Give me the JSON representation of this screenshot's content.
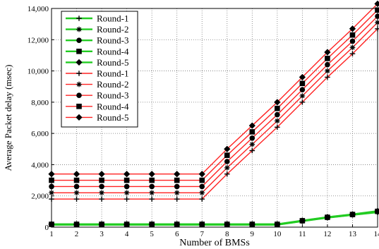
{
  "chart_data": {
    "type": "line",
    "xlabel": "Number of BMSs",
    "ylabel": "Average Packet delay (msec)",
    "x": [
      1,
      2,
      3,
      4,
      5,
      6,
      7,
      8,
      9,
      10,
      11,
      12,
      13,
      14
    ],
    "xlim": [
      1,
      14
    ],
    "ylim": [
      0,
      14000
    ],
    "yticks": [
      "0",
      "2,000",
      "4,000",
      "6,000",
      "8,000",
      "10,000",
      "12,000",
      "14,000"
    ],
    "xticks": [
      "1",
      "2",
      "3",
      "4",
      "5",
      "6",
      "7",
      "8",
      "9",
      "10",
      "11",
      "12",
      "13",
      "14"
    ],
    "grid": "dotted",
    "legend_position": "top-left",
    "series": [
      {
        "name": "Round-1",
        "color": "#22cc22",
        "marker": "plus",
        "values": [
          150,
          150,
          150,
          150,
          150,
          150,
          150,
          150,
          150,
          150,
          380,
          600,
          780,
          950
        ]
      },
      {
        "name": "Round-2",
        "color": "#22cc22",
        "marker": "star",
        "values": [
          160,
          160,
          160,
          160,
          160,
          160,
          160,
          160,
          160,
          160,
          390,
          610,
          790,
          970
        ]
      },
      {
        "name": "Round-3",
        "color": "#22cc22",
        "marker": "circle",
        "values": [
          170,
          170,
          170,
          170,
          170,
          170,
          170,
          170,
          170,
          170,
          400,
          620,
          800,
          990
        ]
      },
      {
        "name": "Round-4",
        "color": "#22cc22",
        "marker": "square",
        "values": [
          180,
          180,
          180,
          180,
          180,
          180,
          180,
          180,
          180,
          180,
          410,
          630,
          810,
          1010
        ]
      },
      {
        "name": "Round-5",
        "color": "#22cc22",
        "marker": "diamond",
        "values": [
          190,
          190,
          190,
          190,
          190,
          190,
          190,
          190,
          190,
          190,
          420,
          640,
          820,
          1030
        ]
      },
      {
        "name": "Round-1",
        "color": "#ff2222",
        "marker": "plus",
        "values": [
          1800,
          1800,
          1800,
          1800,
          1800,
          1800,
          1800,
          3400,
          4900,
          6400,
          8000,
          9600,
          11100,
          12700
        ]
      },
      {
        "name": "Round-2",
        "color": "#ff2222",
        "marker": "star",
        "values": [
          2200,
          2200,
          2200,
          2200,
          2200,
          2200,
          2200,
          3800,
          5300,
          6800,
          8400,
          10000,
          11500,
          13100
        ]
      },
      {
        "name": "Round-3",
        "color": "#ff2222",
        "marker": "circle",
        "values": [
          2600,
          2600,
          2600,
          2600,
          2600,
          2600,
          2600,
          4200,
          5700,
          7200,
          8800,
          10400,
          11900,
          13500
        ]
      },
      {
        "name": "Round-4",
        "color": "#ff2222",
        "marker": "square",
        "values": [
          3000,
          3000,
          3000,
          3000,
          3000,
          3000,
          3000,
          4600,
          6100,
          7600,
          9200,
          10800,
          12300,
          13900
        ]
      },
      {
        "name": "Round-5",
        "color": "#ff2222",
        "marker": "diamond",
        "values": [
          3400,
          3400,
          3400,
          3400,
          3400,
          3400,
          3400,
          5000,
          6500,
          8000,
          9600,
          11200,
          12700,
          14300
        ]
      }
    ]
  }
}
